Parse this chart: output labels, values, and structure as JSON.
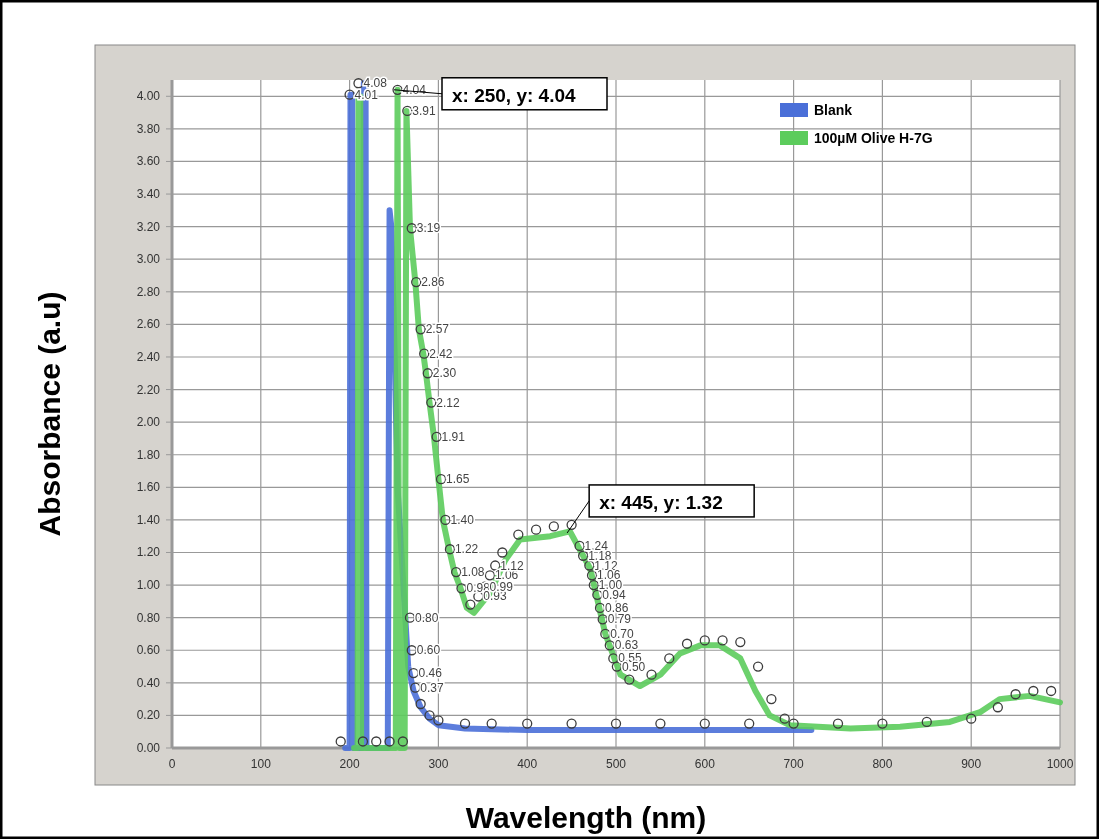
{
  "chart_data": {
    "type": "line",
    "xlabel": "Wavelength (nm)",
    "ylabel": "Absorbance (a.u)",
    "xlim": [
      0,
      1000
    ],
    "xticks": [
      0,
      100,
      200,
      300,
      400,
      500,
      600,
      700,
      800,
      900,
      1000
    ],
    "ylim": [
      0,
      4.1
    ],
    "yticks": [
      {
        "value": 0,
        "label": "0.00"
      },
      {
        "value": 0.2,
        "label": "0.20"
      },
      {
        "value": 0.4,
        "label": "0.40"
      },
      {
        "value": 0.6,
        "label": "0.60"
      },
      {
        "value": 0.8,
        "label": "0.80"
      },
      {
        "value": 1,
        "label": "1.00"
      },
      {
        "value": 1.2,
        "label": "1.20"
      },
      {
        "value": 1.4,
        "label": "1.40"
      },
      {
        "value": 1.6,
        "label": "1.60"
      },
      {
        "value": 1.8,
        "label": "1.80"
      },
      {
        "value": 2,
        "label": "2.00"
      },
      {
        "value": 2.2,
        "label": "2.20"
      },
      {
        "value": 2.4,
        "label": "2.40"
      },
      {
        "value": 2.6,
        "label": "2.60"
      },
      {
        "value": 2.8,
        "label": "2.80"
      },
      {
        "value": 3,
        "label": "3.00"
      },
      {
        "value": 3.2,
        "label": "3.20"
      },
      {
        "value": 3.4,
        "label": "3.40"
      },
      {
        "value": 3.6,
        "label": "3.60"
      },
      {
        "value": 3.8,
        "label": "3.80"
      },
      {
        "value": 4,
        "label": "4.00"
      }
    ],
    "grid": true,
    "legend": "top right",
    "annotations": [
      {
        "text": "x: 250, y: 4.04",
        "x": 250,
        "y": 4.04
      },
      {
        "text": "x: 445, y: 1.32",
        "x": 445,
        "y": 1.32
      }
    ],
    "series": [
      {
        "name": "Blank",
        "color": "#4a6fd8",
        "x": [
          195,
          200,
          201,
          203,
          204,
          215,
          216,
          218,
          219,
          243,
          245,
          247,
          250,
          254,
          258,
          262,
          266,
          272,
          280,
          290,
          300,
          330,
          400,
          500,
          600,
          720
        ],
        "values": [
          0,
          0,
          4.01,
          4.01,
          0,
          0,
          4.08,
          4.08,
          0,
          0,
          3.3,
          3.2,
          2.6,
          1.6,
          null,
          null,
          0.5,
          0.35,
          0.25,
          0.18,
          0.14,
          0.12,
          0.11,
          0.11,
          0.11,
          0.11
        ]
      },
      {
        "name": "100µM Olive H-7G",
        "color": "#5ccc5c",
        "x": [
          205,
          209,
          210,
          212,
          213,
          252,
          254,
          256,
          262,
          264,
          268,
          274,
          278,
          283,
          286,
          290,
          295,
          300,
          305,
          312,
          318,
          325,
          332,
          340,
          358,
          375,
          392,
          426,
          448,
          471,
          488,
          505,
          527,
          550,
          572,
          595,
          617,
          640,
          657,
          673,
          696,
          764,
          820,
          876,
          910,
          932,
          966,
          1000
        ],
        "values": [
          0,
          0,
          4.0,
          4.0,
          0,
          0,
          4.04,
          0,
          0,
          3.91,
          3.19,
          2.86,
          2.57,
          2.42,
          2.3,
          2.12,
          1.91,
          1.65,
          1.4,
          1.22,
          1.08,
          0.98,
          0.86,
          0.83,
          0.95,
          1.15,
          1.28,
          1.3,
          1.33,
          1.1,
          0.7,
          0.45,
          0.38,
          0.45,
          0.58,
          0.63,
          0.63,
          0.55,
          0.35,
          0.2,
          0.14,
          0.12,
          0.13,
          0.16,
          0.22,
          0.3,
          0.32,
          0.28
        ]
      },
      {
        "type": "scatter",
        "color": "#3c3c3c",
        "marker": "circle",
        "x": [
          200,
          210,
          268,
          270,
          272,
          274,
          280,
          290,
          300,
          330,
          360,
          400,
          450,
          500,
          550,
          600,
          650,
          700,
          750,
          800,
          850,
          900,
          930,
          950,
          970,
          990,
          190,
          215,
          230,
          245,
          260
        ],
        "values": [
          4.01,
          4.08,
          0.8,
          0.6,
          0.46,
          0.37,
          0.27,
          0.2,
          0.17,
          0.15,
          0.15,
          0.15,
          0.15,
          0.15,
          0.15,
          0.15,
          0.15,
          0.15,
          0.15,
          0.15,
          0.16,
          0.18,
          0.25,
          0.33,
          0.35,
          0.35,
          0.04,
          0.04,
          0.04,
          0.04,
          0.04
        ],
        "value_labels": [
          "4.01",
          "4.08",
          "0.80",
          "0.60",
          "0.46",
          "0.37",
          null,
          null,
          null,
          null,
          null,
          null,
          null,
          null,
          null,
          null,
          null,
          null,
          null,
          null,
          null,
          null,
          null,
          null,
          null,
          null,
          null,
          null,
          null,
          null,
          null
        ]
      },
      {
        "type": "scatter",
        "color": "#3c3c3c",
        "marker": "circle",
        "x": [
          254,
          265,
          270,
          275,
          280,
          284,
          288,
          292,
          298,
          303,
          308,
          313,
          320,
          326,
          336,
          345,
          352,
          358,
          364,
          372,
          390,
          410,
          430,
          450,
          459,
          463,
          470,
          473,
          475,
          479,
          482,
          485,
          488,
          493,
          497,
          501,
          515,
          540,
          560,
          580,
          600,
          620,
          640,
          660,
          675,
          690
        ],
        "values": [
          4.04,
          3.91,
          3.19,
          2.86,
          2.57,
          2.42,
          2.3,
          2.12,
          1.91,
          1.65,
          1.4,
          1.22,
          1.08,
          0.98,
          0.88,
          0.93,
          0.99,
          1.06,
          1.12,
          1.2,
          1.31,
          1.34,
          1.36,
          1.37,
          1.24,
          1.18,
          1.12,
          1.06,
          1.0,
          0.94,
          0.86,
          0.79,
          0.7,
          0.63,
          0.55,
          0.5,
          0.42,
          0.45,
          0.55,
          0.64,
          0.66,
          0.66,
          0.65,
          0.5,
          0.3,
          0.18
        ],
        "value_labels": [
          "4.04",
          "3.91",
          "3.19",
          "2.86",
          "2.57",
          "2.42",
          "2.30",
          "2.12",
          "1.91",
          "1.65",
          "1.40",
          "1.22",
          "1.08",
          "0.98",
          null,
          "0.93",
          "0.99",
          "1.06",
          "1.12",
          null,
          null,
          null,
          null,
          null,
          "1.24",
          "1.18",
          "1.12",
          "1.06",
          "1.00",
          "0.94",
          "0.86",
          "0.79",
          "0.70",
          "0.63",
          "0.55",
          "0.50",
          null,
          null,
          null,
          null,
          null,
          null,
          null,
          null,
          null,
          null
        ]
      }
    ]
  }
}
